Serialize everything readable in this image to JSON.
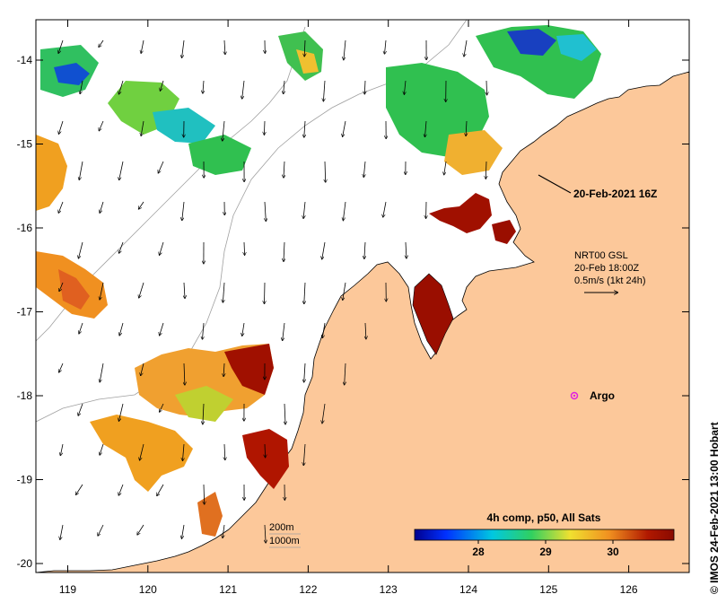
{
  "map": {
    "axes": {
      "lon_ticks": [
        "119",
        "120",
        "121",
        "122",
        "123",
        "124",
        "125",
        "126"
      ],
      "lat_ticks": [
        "-14",
        "-15",
        "-16",
        "-17",
        "-18",
        "-19",
        "-20"
      ]
    },
    "track_label": "20-Feb-2021 16Z",
    "current_legend": {
      "line1": "NRT00 GSL",
      "line2": "20-Feb 18:00Z",
      "line3": "0.5m/s (1kt 24h)"
    },
    "argo_label": "Argo",
    "depth_legend": {
      "contour1": "200m",
      "contour2": "1000m"
    },
    "colorbar": {
      "title": "4h comp, p50, All Sats",
      "ticks": [
        "28",
        "29",
        "30"
      ],
      "colors": [
        "#00008f",
        "#0030ff",
        "#00c8e0",
        "#30d060",
        "#f0e030",
        "#f09020",
        "#b01800",
        "#8a0a00"
      ]
    },
    "credit": "© IMOS 24-Feb-2021 13:00 Hobart",
    "colors": {
      "land": "#fcc89a",
      "ocean": "#ffffff",
      "argo": "#e020e0"
    }
  }
}
